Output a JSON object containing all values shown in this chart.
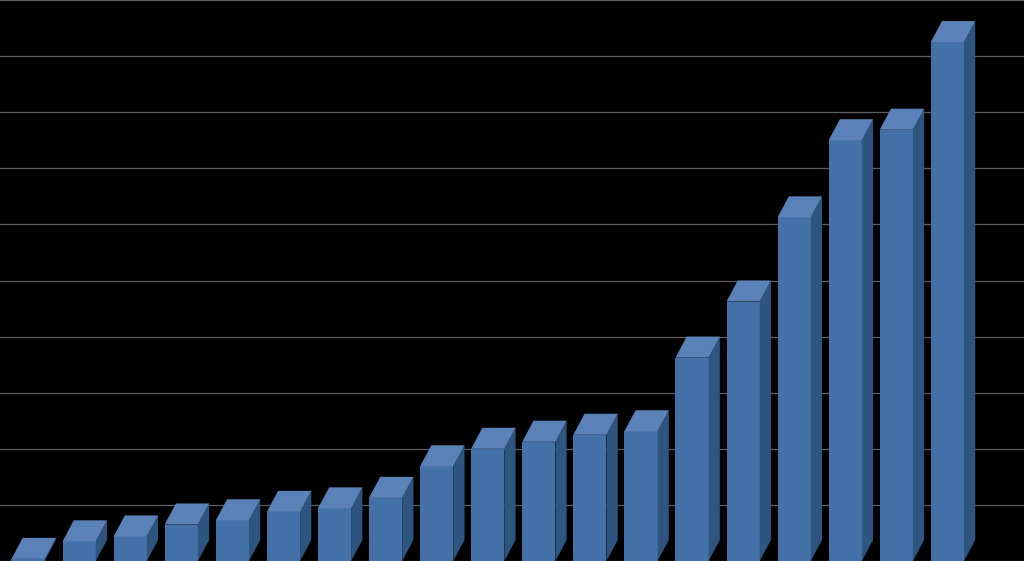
{
  "values": [
    0.3,
    2.8,
    3.5,
    5.2,
    5.8,
    7.0,
    7.5,
    9.0,
    13.5,
    16.0,
    17.0,
    18.0,
    18.5,
    29.0,
    37.0,
    49.0,
    60.0,
    61.5,
    74.0
  ],
  "bar_color_front": "#4472a8",
  "bar_color_side": "#2e5480",
  "bar_color_top": "#5a82b8",
  "background_color": "#000000",
  "grid_color": "#808080",
  "n_gridlines": 11,
  "bar_width": 0.65,
  "depth_x": 0.22,
  "depth_y": 3.0,
  "ylim": [
    0,
    80
  ],
  "xlim_left": -0.55,
  "xlim_right": 19.5
}
